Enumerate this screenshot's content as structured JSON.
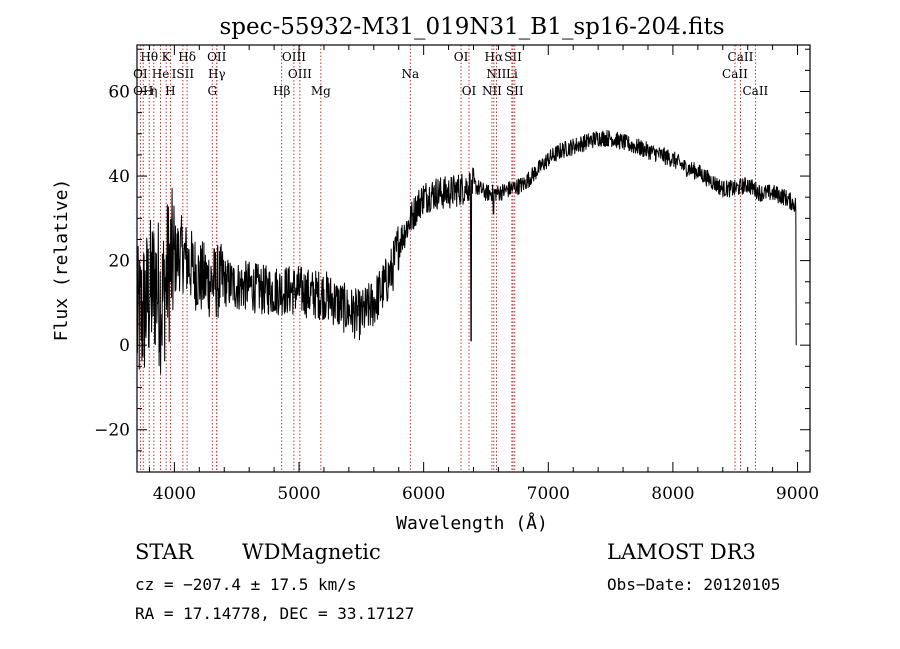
{
  "chart_data": {
    "type": "line",
    "title": "spec-55932-M31_019N31_B1_sp16-204.fits",
    "xlabel": "Wavelength (Å)",
    "ylabel": "Flux (relative)",
    "xlim": [
      3700,
      9100
    ],
    "ylim": [
      -30,
      71
    ],
    "xticks": [
      4000,
      5000,
      6000,
      7000,
      8000,
      9000
    ],
    "yticks": [
      -20,
      0,
      20,
      40,
      60
    ],
    "spectrum_anchors": {
      "x": [
        3700,
        3750,
        3800,
        3850,
        3900,
        3950,
        4000,
        4050,
        4100,
        4150,
        4200,
        4300,
        4400,
        4500,
        4600,
        4700,
        4800,
        4900,
        5000,
        5100,
        5200,
        5300,
        5400,
        5500,
        5600,
        5700,
        5750,
        5800,
        5850,
        5900,
        5950,
        6000,
        6100,
        6200,
        6300,
        6400,
        6500,
        6600,
        6700,
        6800,
        6900,
        7000,
        7100,
        7200,
        7300,
        7400,
        7500,
        7600,
        7700,
        7800,
        7900,
        8000,
        8100,
        8200,
        8300,
        8400,
        8500,
        8600,
        8700,
        8800,
        8900,
        8990
      ],
      "y": [
        5,
        8,
        12,
        15,
        10,
        18,
        20,
        22,
        20,
        18,
        16,
        15,
        15,
        14,
        14,
        13,
        13,
        13,
        13,
        12,
        12,
        10,
        8,
        7,
        10,
        15,
        18,
        24,
        27,
        30,
        33,
        35,
        36,
        36,
        37,
        38,
        36,
        36,
        37,
        38,
        41,
        44,
        46,
        47,
        48,
        49,
        49,
        48,
        47,
        46,
        45,
        44,
        42,
        41,
        39,
        37,
        37,
        38,
        36,
        36,
        35,
        33
      ]
    },
    "spectrum_noise": {
      "segments": [
        {
          "x_from": 3700,
          "x_to": 4000,
          "amplitude": 18
        },
        {
          "x_from": 4000,
          "x_to": 4400,
          "amplitude": 9
        },
        {
          "x_from": 4400,
          "x_to": 5800,
          "amplitude": 6
        },
        {
          "x_from": 5800,
          "x_to": 6400,
          "amplitude": 4
        },
        {
          "x_from": 6400,
          "x_to": 9000,
          "amplitude": 2
        }
      ]
    },
    "absorption_dips": [
      {
        "x": 6380,
        "y": 1
      },
      {
        "x": 6560,
        "y": 31
      },
      {
        "x": 8990,
        "y": 0
      }
    ],
    "line_markers": [
      {
        "label": "Hθ",
        "x": 3798,
        "row": 1
      },
      {
        "label": "K",
        "x": 3934,
        "row": 1
      },
      {
        "label": "Hδ",
        "x": 4102,
        "row": 1
      },
      {
        "label": "OII",
        "x": 4340,
        "row": 1
      },
      {
        "label": "OIII",
        "x": 4959,
        "row": 1
      },
      {
        "label": "OI",
        "x": 6300,
        "row": 1
      },
      {
        "label": "Hα",
        "x": 6563,
        "row": 1
      },
      {
        "label": "SII",
        "x": 6717,
        "row": 1
      },
      {
        "label": "CaII",
        "x": 8542,
        "row": 1
      },
      {
        "label": "OI",
        "x": 3727,
        "row": 2
      },
      {
        "label": "He",
        "x": 3889,
        "row": 2
      },
      {
        "label": "ISII",
        "x": 4068,
        "row": 2
      },
      {
        "label": "Hγ",
        "x": 4340,
        "row": 2
      },
      {
        "label": "OIII",
        "x": 5007,
        "row": 2
      },
      {
        "label": "Na",
        "x": 5893,
        "row": 2
      },
      {
        "label": "NII",
        "x": 6584,
        "row": 2
      },
      {
        "label": "Li",
        "x": 6708,
        "row": 2
      },
      {
        "label": "CaII",
        "x": 8498,
        "row": 2
      },
      {
        "label": "OH",
        "x": 3750,
        "row": 3
      },
      {
        "label": "η",
        "x": 3835,
        "row": 3
      },
      {
        "label": "H",
        "x": 3968,
        "row": 3
      },
      {
        "label": "G",
        "x": 4304,
        "row": 3
      },
      {
        "label": "Hβ",
        "x": 4861,
        "row": 3
      },
      {
        "label": "Mg",
        "x": 5175,
        "row": 3
      },
      {
        "label": "OI",
        "x": 6364,
        "row": 3
      },
      {
        "label": "NII",
        "x": 6548,
        "row": 3
      },
      {
        "label": "SII",
        "x": 6731,
        "row": 3
      },
      {
        "label": "CaII",
        "x": 8662,
        "row": 3
      }
    ]
  },
  "info": {
    "object_class": "STAR",
    "subclass": "WDMagnetic",
    "survey": "LAMOST DR3",
    "velocity": "cz = −207.4 ± 17.5 km/s",
    "obs_date": "Obs−Date: 20120105",
    "coords": "RA =  17.14778, DEC =  33.17127"
  },
  "colors": {
    "axis": "#000000",
    "spectrum": "#000000",
    "marker": "#b22222"
  }
}
